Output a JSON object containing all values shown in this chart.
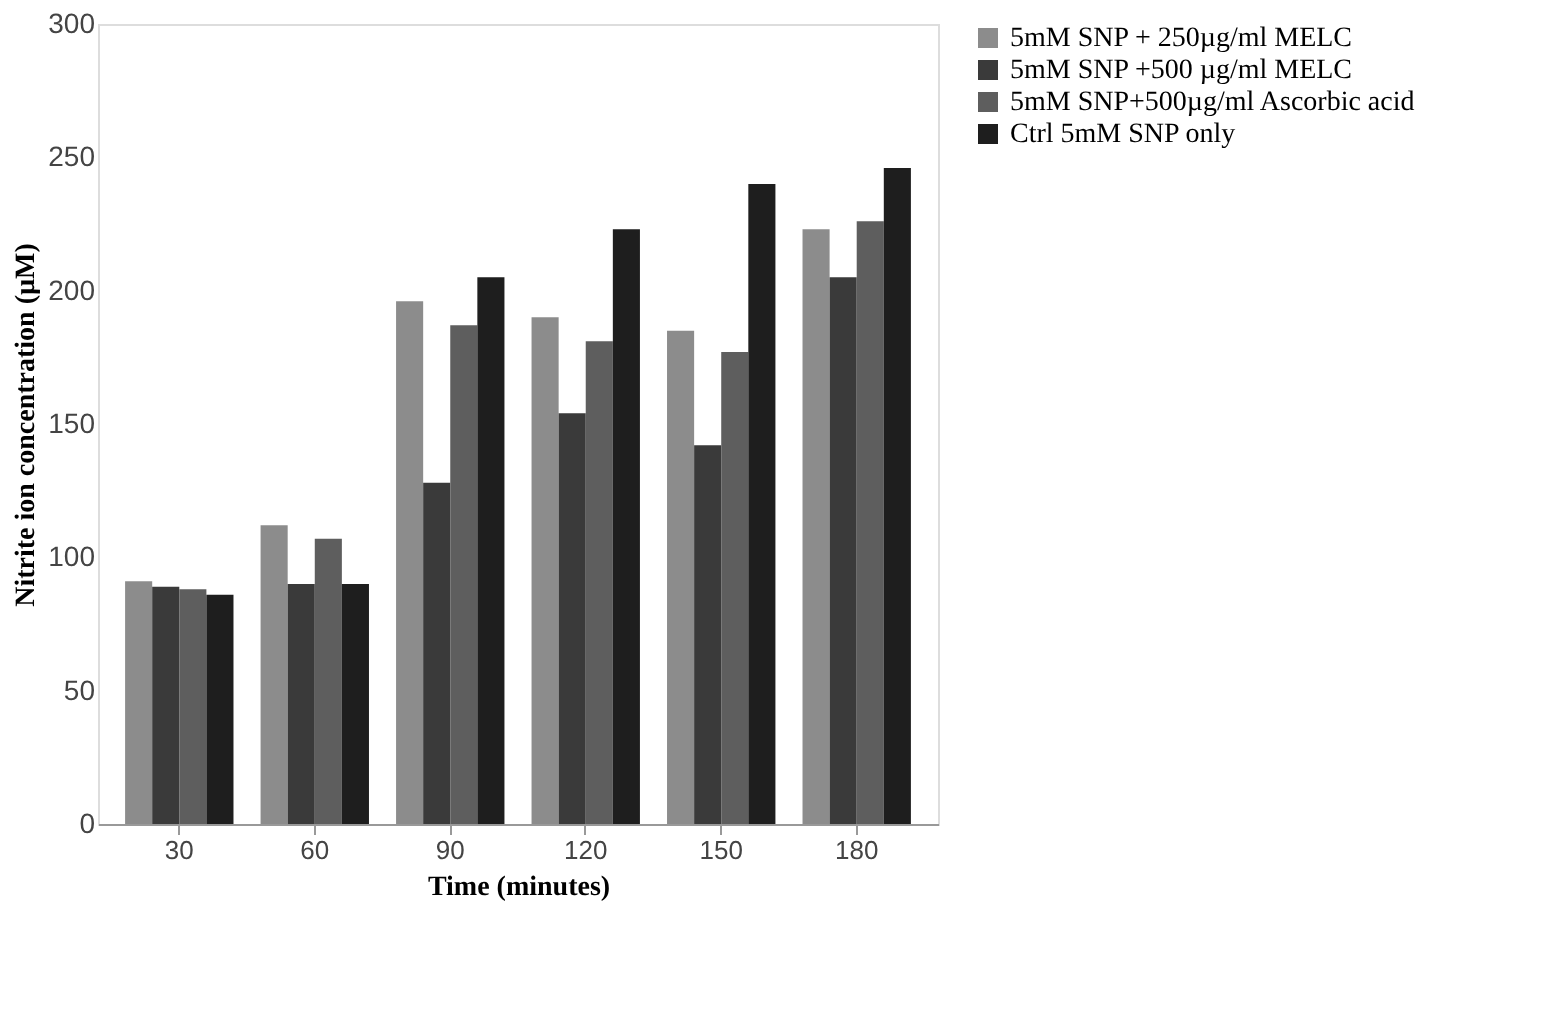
{
  "chart_data": {
    "type": "bar",
    "xlabel": "Time (minutes)",
    "ylabel": "Nitrite ion concentration  (µM)",
    "categories": [
      "30",
      "60",
      "90",
      "120",
      "150",
      "180"
    ],
    "series": [
      {
        "name": "5mM SNP + 250µg/ml MELC",
        "color": "#8c8c8c",
        "values": [
          91,
          112,
          196,
          190,
          185,
          223
        ]
      },
      {
        "name": "5mM SNP +500 µg/ml MELC",
        "color": "#3a3a3a",
        "values": [
          89,
          90,
          128,
          154,
          142,
          205
        ]
      },
      {
        "name": "5mM SNP+500µg/ml Ascorbic acid",
        "color": "#5e5e5e",
        "values": [
          88,
          107,
          187,
          181,
          177,
          226
        ]
      },
      {
        "name": "Ctrl 5mM SNP only",
        "color": "#1e1e1e",
        "values": [
          86,
          90,
          205,
          223,
          240,
          246
        ]
      }
    ],
    "ylim": [
      0,
      300
    ],
    "yticks": [
      0,
      50,
      100,
      150,
      200,
      250,
      300
    ],
    "grid": false,
    "legend": "right"
  }
}
